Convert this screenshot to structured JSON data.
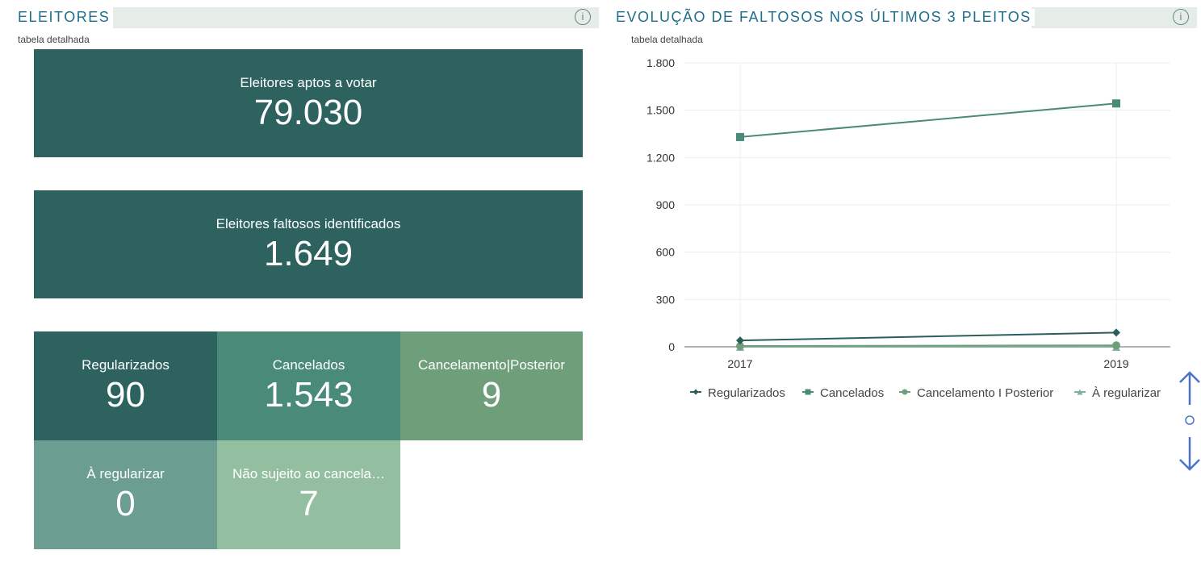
{
  "left_panel": {
    "title": "ELEITORES",
    "subtitle": "tabela detalhada",
    "cards": [
      {
        "label": "Eleitores aptos a votar",
        "value": "79.030"
      },
      {
        "label": "Eleitores faltosos identificados",
        "value": "1.649"
      }
    ],
    "tiles": [
      {
        "label": "Regularizados",
        "value": "90"
      },
      {
        "label": "Cancelados",
        "value": "1.543"
      },
      {
        "label": "Cancelamento|Posterior",
        "value": "9"
      },
      {
        "label": "À regularizar",
        "value": "0"
      },
      {
        "label": "Não sujeito ao cancela…",
        "value": "7"
      }
    ]
  },
  "chart_data": {
    "type": "line",
    "title": "EVOLUÇÃO DE FALTOSOS NOS ÚLTIMOS 3 PLEITOS",
    "subtitle": "tabela detalhada",
    "categories": [
      "2017",
      "2019"
    ],
    "series": [
      {
        "name": "Regularizados",
        "color": "#2b5f5c",
        "marker": "diamond",
        "values": [
          40,
          90
        ]
      },
      {
        "name": "Cancelados",
        "color": "#4a8a78",
        "marker": "square",
        "values": [
          1330,
          1543
        ]
      },
      {
        "name": "Cancelamento I Posterior",
        "color": "#6f9e7a",
        "marker": "circle",
        "values": [
          5,
          9
        ]
      },
      {
        "name": "À regularizar",
        "color": "#7fb09a",
        "marker": "triangle",
        "values": [
          0,
          0
        ]
      }
    ],
    "ylim": [
      0,
      1800
    ],
    "yticks": [
      0,
      300,
      600,
      900,
      {
        "value": 1200,
        "label": "1.200"
      },
      {
        "value": 1500,
        "label": "1.500"
      },
      {
        "value": 1800,
        "label": "1.800"
      }
    ],
    "grid": true,
    "legend": "bottom"
  }
}
